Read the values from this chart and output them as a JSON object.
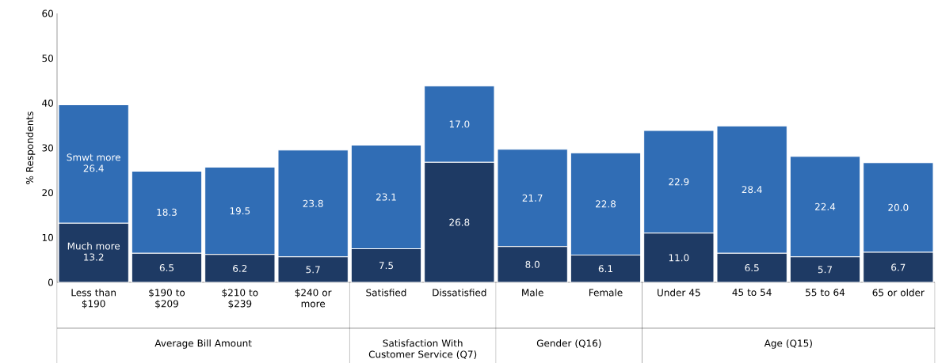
{
  "chart_data": {
    "type": "bar",
    "stacked": true,
    "ylabel": "% Respondents",
    "categories": [
      "Less than $190",
      "$190 to $209",
      "$210 to $239",
      "$240 or more",
      "Satisfied",
      "Dissatisfied",
      "Male",
      "Female",
      "Under 45",
      "45 to 54",
      "55 to 64",
      "65 or older"
    ],
    "series": [
      {
        "name": "Much more",
        "color": "#1e3a64",
        "values": [
          13.2,
          6.5,
          6.2,
          5.7,
          7.5,
          26.8,
          8.0,
          6.1,
          11.0,
          6.5,
          5.7,
          6.7
        ],
        "value_labels": [
          "13.2",
          "6.5",
          "6.2",
          "5.7",
          "7.5",
          "26.8",
          "8.0",
          "6.1",
          "11.0",
          "6.5",
          "5.7",
          "6.7"
        ]
      },
      {
        "name": "Smwt more",
        "color": "#306db5",
        "values": [
          26.4,
          18.3,
          19.5,
          23.8,
          23.1,
          17.0,
          21.7,
          22.8,
          22.9,
          28.4,
          22.4,
          20.0
        ],
        "value_labels": [
          "26.4",
          "18.3",
          "19.5",
          "23.8",
          "23.1",
          "17.0",
          "21.7",
          "22.8",
          "22.9",
          "28.4",
          "22.4",
          "20.0"
        ]
      }
    ],
    "ylim": [
      0,
      60
    ],
    "yticks": [
      0,
      10,
      20,
      30,
      40,
      50,
      60
    ],
    "grid": false,
    "annotations": [
      {
        "text": "Average Bill Amount"
      },
      {
        "text": "Satisfaction With Customer Service (Q7)"
      },
      {
        "text": "Gender (Q16)"
      },
      {
        "text": "Age (Q15)"
      }
    ]
  }
}
